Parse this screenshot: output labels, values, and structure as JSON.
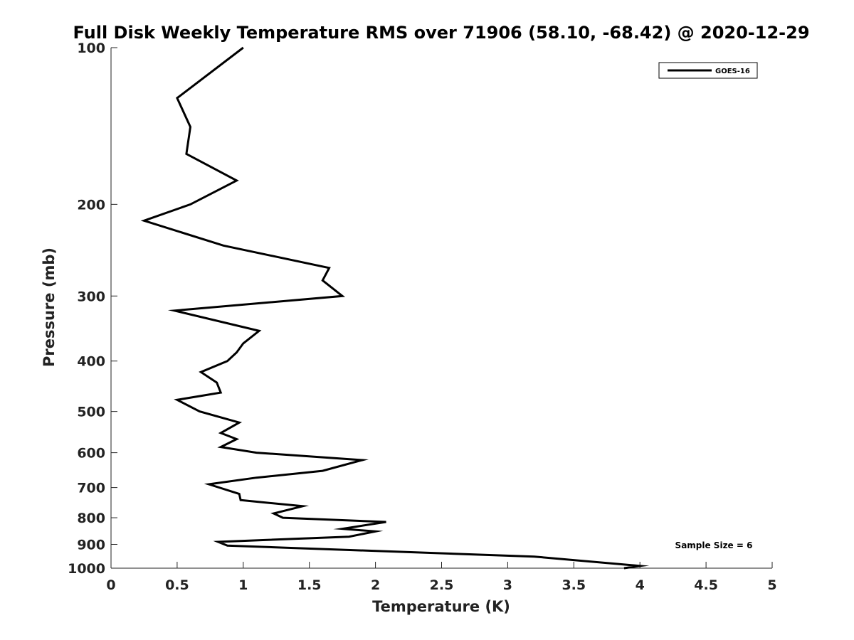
{
  "chart_data": {
    "type": "line",
    "title": "Full Disk Weekly Temperature RMS over 71906 (58.10, -68.42) @ 2020-12-29",
    "xlabel": "Temperature (K)",
    "ylabel": "Pressure (mb)",
    "xlim": [
      0,
      5
    ],
    "ylim": [
      100,
      1000
    ],
    "yscale": "log",
    "yreversed": true,
    "x_ticks": [
      "0",
      "0.5",
      "1",
      "1.5",
      "2",
      "2.5",
      "3",
      "3.5",
      "4",
      "4.5",
      "5"
    ],
    "y_ticks": [
      "100",
      "200",
      "300",
      "400",
      "500",
      "600",
      "700",
      "800",
      "900",
      "1000"
    ],
    "grid": false,
    "legend_position": "top-right",
    "annotation": "Sample Size = 6",
    "series": [
      {
        "name": "GOES-16",
        "color": "#000000",
        "points": [
          [
            1.0,
            100
          ],
          [
            0.5,
            125
          ],
          [
            0.6,
            142
          ],
          [
            0.57,
            160
          ],
          [
            0.95,
            180
          ],
          [
            0.6,
            200
          ],
          [
            0.25,
            215
          ],
          [
            0.85,
            240
          ],
          [
            1.65,
            265
          ],
          [
            1.6,
            280
          ],
          [
            1.75,
            300
          ],
          [
            0.48,
            320
          ],
          [
            1.12,
            350
          ],
          [
            1.0,
            370
          ],
          [
            0.95,
            385
          ],
          [
            0.88,
            400
          ],
          [
            0.68,
            420
          ],
          [
            0.8,
            440
          ],
          [
            0.83,
            460
          ],
          [
            0.5,
            475
          ],
          [
            0.67,
            500
          ],
          [
            0.97,
            525
          ],
          [
            0.83,
            550
          ],
          [
            0.95,
            565
          ],
          [
            0.83,
            585
          ],
          [
            1.1,
            600
          ],
          [
            1.9,
            620
          ],
          [
            1.6,
            650
          ],
          [
            1.1,
            670
          ],
          [
            0.74,
            690
          ],
          [
            0.97,
            720
          ],
          [
            0.98,
            740
          ],
          [
            1.45,
            760
          ],
          [
            1.23,
            785
          ],
          [
            1.3,
            800
          ],
          [
            2.08,
            815
          ],
          [
            1.75,
            840
          ],
          [
            2.0,
            850
          ],
          [
            1.8,
            870
          ],
          [
            0.81,
            890
          ],
          [
            0.88,
            905
          ],
          [
            3.2,
            950
          ],
          [
            4.0,
            990
          ],
          [
            3.88,
            1000
          ]
        ]
      }
    ]
  }
}
